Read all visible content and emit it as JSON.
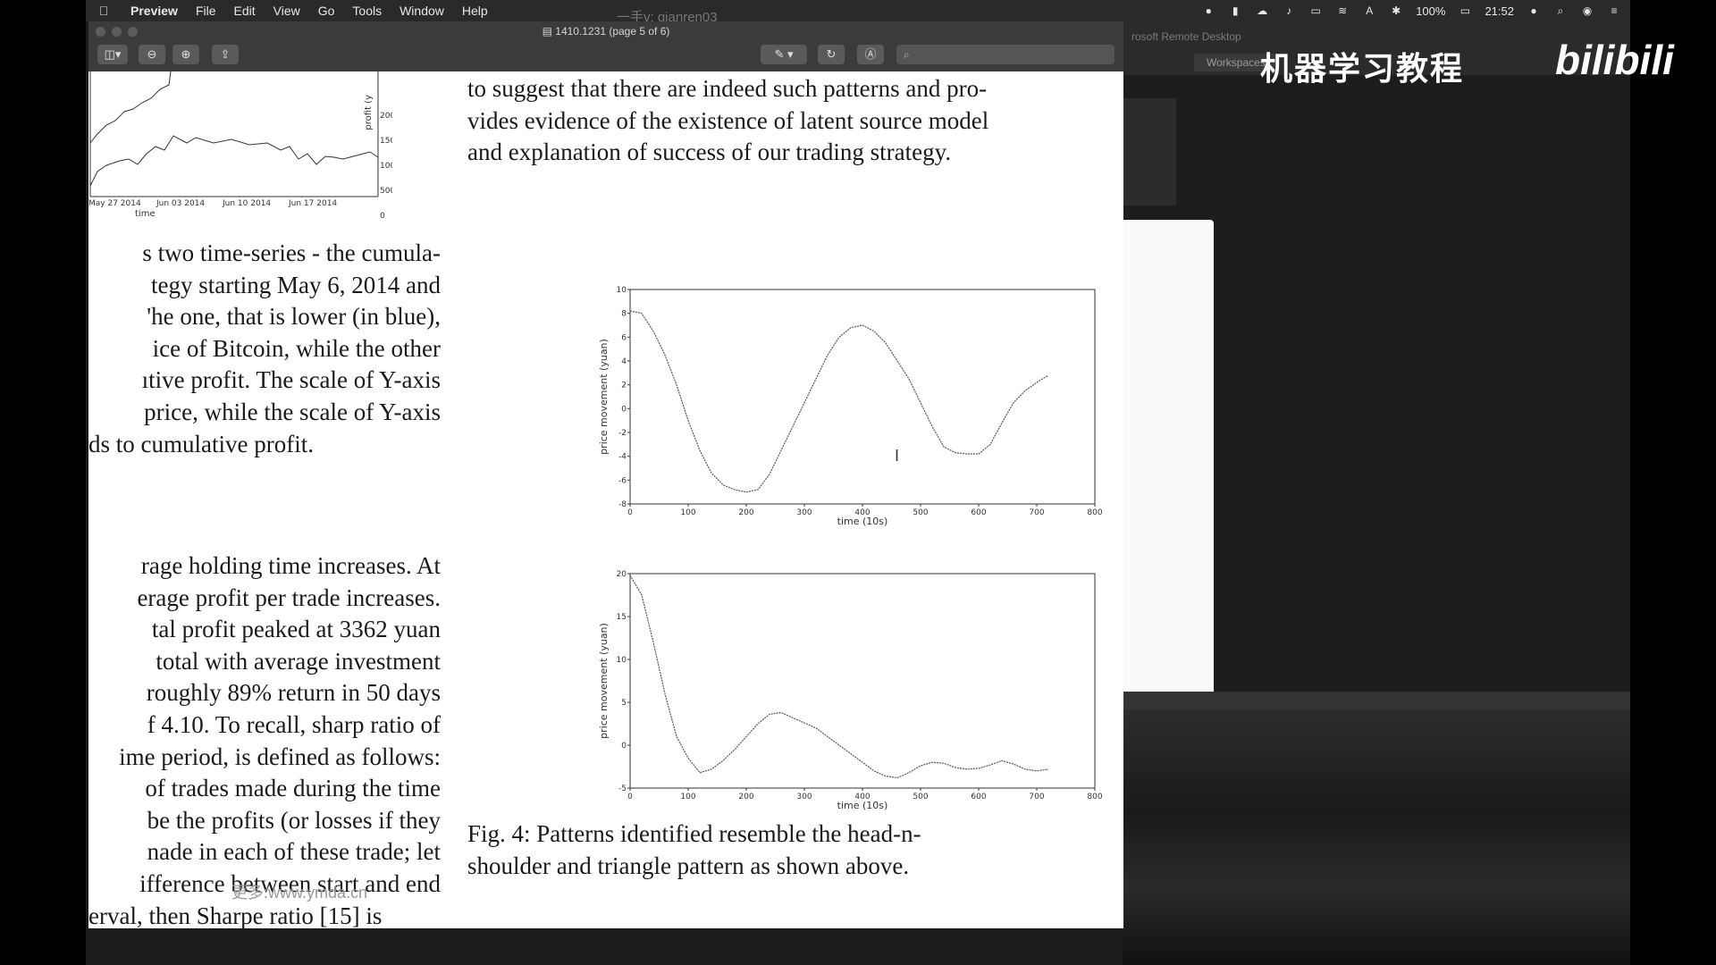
{
  "menubar": {
    "app": "Preview",
    "items": [
      "File",
      "Edit",
      "View",
      "Go",
      "Tools",
      "Window",
      "Help"
    ],
    "battery": "100%",
    "clock": "21:52"
  },
  "overlay": {
    "top_watermark": "一手v: qianren03",
    "channel_title": "机器学习教程",
    "bili_logo": "bilibili",
    "site_watermark": "更多:www.ymda.cn"
  },
  "remote": {
    "title": "rosoft Remote Desktop",
    "workspaces": "Workspaces"
  },
  "window": {
    "title": "1410.1231 (page 5 of 6)"
  },
  "document": {
    "top_chart": {
      "ylabel": "profit (y",
      "yticks": [
        "2000",
        "1500",
        "1000",
        "500",
        "0"
      ],
      "xticks": [
        "May 27 2014",
        "Jun 03 2014",
        "Jun 10 2014",
        "Jun 17 2014"
      ],
      "xlabel": "time"
    },
    "left_para1": [
      "s two time-series - the cumula-",
      "tegy starting May 6, 2014 and",
      "'he one, that is lower (in blue),",
      "ice of Bitcoin, while the other",
      "ıtive profit. The scale of Y-axis",
      " price, while the scale of Y-axis",
      "ds to cumulative profit."
    ],
    "left_para2": [
      "rage holding time increases. At",
      "erage profit per trade increases.",
      "tal profit peaked at 3362 yuan",
      " total with average investment",
      "roughly 89% return in 50 days",
      "f 4.10. To recall, sharp ratio of",
      "ime period, is defined as follows:",
      "of trades made during the time",
      " be the profits (or losses if they",
      "nade in each of these trade; let",
      "ifference between start and end",
      "erval, then Sharpe ratio [15] is"
    ],
    "right_para": [
      "to suggest that there are indeed such patterns and pro-",
      "vides evidence of the existence of latent source model",
      "and explanation of success of our trading strategy."
    ],
    "caption": [
      "Fig.  4:  Patterns  identified  resemble  the  head-n-",
      "shoulder and triangle pattern as shown above."
    ]
  },
  "chart_data": [
    {
      "type": "line",
      "xlabel": "time (10s)",
      "ylabel": "price movement (yuan)",
      "xlim": [
        0,
        800
      ],
      "ylim": [
        -8,
        10
      ],
      "xticks": [
        0,
        100,
        200,
        300,
        400,
        500,
        600,
        700,
        800
      ],
      "yticks": [
        -8,
        -6,
        -4,
        -2,
        0,
        2,
        4,
        6,
        8,
        10
      ],
      "x": [
        0,
        20,
        40,
        60,
        80,
        100,
        120,
        140,
        160,
        180,
        200,
        220,
        240,
        260,
        280,
        300,
        320,
        340,
        360,
        380,
        400,
        420,
        440,
        460,
        480,
        500,
        520,
        540,
        560,
        580,
        600,
        620,
        640,
        660,
        680,
        700,
        720
      ],
      "y": [
        8.2,
        8.0,
        6.5,
        4.5,
        2.0,
        -1.0,
        -3.5,
        -5.4,
        -6.4,
        -6.8,
        -7.0,
        -6.8,
        -5.5,
        -3.5,
        -1.5,
        0.5,
        2.5,
        4.5,
        6.0,
        6.8,
        7.0,
        6.5,
        5.5,
        4.0,
        2.5,
        0.5,
        -1.5,
        -3.2,
        -3.7,
        -3.8,
        -3.8,
        -3.0,
        -1.2,
        0.5,
        1.5,
        2.2,
        2.8
      ]
    },
    {
      "type": "line",
      "xlabel": "time (10s)",
      "ylabel": "price movement (yuan)",
      "xlim": [
        0,
        800
      ],
      "ylim": [
        -5,
        20
      ],
      "xticks": [
        0,
        100,
        200,
        300,
        400,
        500,
        600,
        700,
        800
      ],
      "yticks": [
        -5,
        0,
        5,
        10,
        15,
        20
      ],
      "x": [
        0,
        20,
        40,
        60,
        80,
        100,
        120,
        140,
        160,
        180,
        200,
        220,
        240,
        260,
        280,
        300,
        320,
        340,
        360,
        380,
        400,
        420,
        440,
        460,
        480,
        500,
        520,
        540,
        560,
        580,
        600,
        620,
        640,
        660,
        680,
        700,
        720
      ],
      "y": [
        19.8,
        17.5,
        12.0,
        6.0,
        1.0,
        -1.5,
        -3.2,
        -2.8,
        -1.8,
        -0.5,
        1.0,
        2.5,
        3.6,
        3.8,
        3.2,
        2.6,
        2.0,
        1.0,
        0.0,
        -1.0,
        -2.0,
        -3.0,
        -3.6,
        -3.8,
        -3.2,
        -2.4,
        -2.0,
        -2.1,
        -2.6,
        -2.8,
        -2.7,
        -2.3,
        -1.8,
        -2.2,
        -2.8,
        -3.0,
        -2.8
      ]
    }
  ]
}
